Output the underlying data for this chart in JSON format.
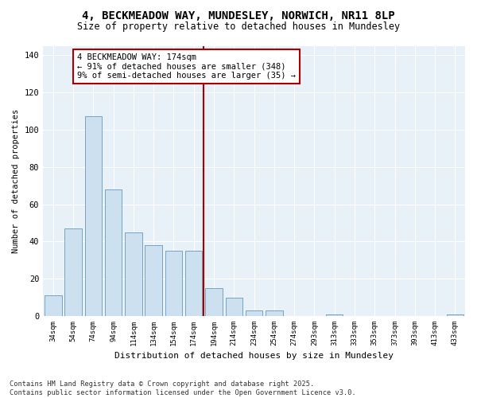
{
  "title_line1": "4, BECKMEADOW WAY, MUNDESLEY, NORWICH, NR11 8LP",
  "title_line2": "Size of property relative to detached houses in Mundesley",
  "xlabel": "Distribution of detached houses by size in Mundesley",
  "ylabel": "Number of detached properties",
  "categories": [
    "34sqm",
    "54sqm",
    "74sqm",
    "94sqm",
    "114sqm",
    "134sqm",
    "154sqm",
    "174sqm",
    "194sqm",
    "214sqm",
    "234sqm",
    "254sqm",
    "274sqm",
    "293sqm",
    "313sqm",
    "333sqm",
    "353sqm",
    "373sqm",
    "393sqm",
    "413sqm",
    "433sqm"
  ],
  "values": [
    11,
    47,
    107,
    68,
    45,
    38,
    35,
    35,
    15,
    10,
    3,
    3,
    0,
    0,
    1,
    0,
    0,
    0,
    0,
    0,
    1
  ],
  "bar_color": "#cce0f0",
  "bar_edge_color": "#6699bb",
  "highlight_line_color": "#aa0000",
  "annotation_box_text": "4 BECKMEADOW WAY: 174sqm\n← 91% of detached houses are smaller (348)\n9% of semi-detached houses are larger (35) →",
  "ylim": [
    0,
    145
  ],
  "yticks": [
    0,
    20,
    40,
    60,
    80,
    100,
    120,
    140
  ],
  "bg_color": "#e8f0f8",
  "grid_color": "#ffffff",
  "footnote": "Contains HM Land Registry data © Crown copyright and database right 2025.\nContains public sector information licensed under the Open Government Licence v3.0."
}
